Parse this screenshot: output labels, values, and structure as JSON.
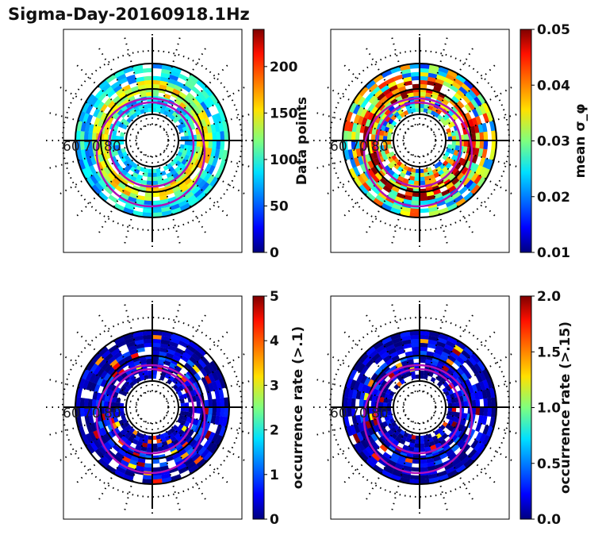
{
  "title": "Sigma-Day-20160918.1Hz",
  "chart_data": [
    {
      "type": "heatmap",
      "projection": "polar",
      "radial_labels": [
        "60",
        "70",
        "80"
      ],
      "colorbar": {
        "label": "Data points",
        "range": [
          0,
          240
        ],
        "ticks": [
          "0",
          "50",
          "100",
          "150",
          "200"
        ],
        "tick_values": [
          0,
          50,
          100,
          150,
          200
        ]
      },
      "mean_level": 0.35
    },
    {
      "type": "heatmap",
      "projection": "polar",
      "radial_labels": [
        "60",
        "70",
        "80"
      ],
      "colorbar": {
        "label": "mean σ_φ",
        "range": [
          0.01,
          0.05
        ],
        "ticks": [
          "0.01",
          "0.02",
          "0.03",
          "0.04",
          "0.05"
        ],
        "tick_values": [
          0.01,
          0.02,
          0.03,
          0.04,
          0.05
        ]
      },
      "mean_level": 0.5
    },
    {
      "type": "heatmap",
      "projection": "polar",
      "radial_labels": [
        "60",
        "70",
        "80"
      ],
      "colorbar": {
        "label": "occurrence rate (>.1)",
        "range": [
          0,
          5
        ],
        "ticks": [
          "0",
          "1",
          "2",
          "3",
          "4",
          "5"
        ],
        "tick_values": [
          0,
          1,
          2,
          3,
          4,
          5
        ]
      },
      "mean_level": 0.05
    },
    {
      "type": "heatmap",
      "projection": "polar",
      "radial_labels": [
        "60",
        "70",
        "80"
      ],
      "colorbar": {
        "label": "occurrence rate (>.15)",
        "range": [
          0,
          2
        ],
        "ticks": [
          "0.0",
          "0.5",
          "1.0",
          "1.5",
          "2.0"
        ],
        "tick_values": [
          0,
          0.5,
          1,
          1.5,
          2
        ]
      },
      "mean_level": 0.04
    }
  ]
}
